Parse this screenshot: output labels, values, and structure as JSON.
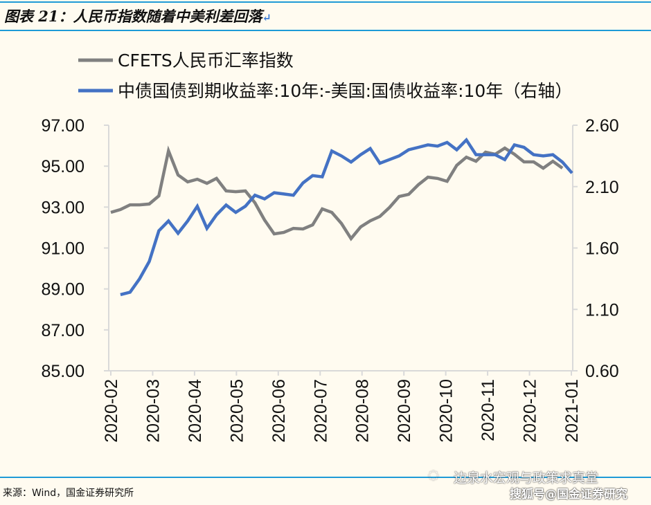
{
  "header": {
    "title": "图表 21：人民币指数随着中美利差回落",
    "return_mark": "↵"
  },
  "footer": {
    "source": "来源：Wind，国金证券研究所",
    "watermark_top": "边泉水宏观与政策求真堂",
    "watermark_bottom": "搜狐号@国金证券研究"
  },
  "chart_data": {
    "type": "line",
    "title": "",
    "x_tick_labels": [
      "2020-02",
      "2020-03",
      "2020-04",
      "2020-05",
      "2020-06",
      "2020-07",
      "2020-08",
      "2020-09",
      "2020-10",
      "2020-11",
      "2020-12",
      "2021-01"
    ],
    "x_range": [
      "2020-02",
      "2021-01"
    ],
    "left_axis": {
      "min": 85,
      "max": 97,
      "ticks": [
        "85.00",
        "87.00",
        "89.00",
        "91.00",
        "93.00",
        "95.00",
        "97.00"
      ]
    },
    "right_axis": {
      "min": 0.6,
      "max": 2.6,
      "ticks": [
        "0.60",
        "1.10",
        "1.60",
        "2.10",
        "2.60"
      ],
      "label": "右轴"
    },
    "grid": false,
    "legend_placement": "top-left",
    "series": [
      {
        "name": "CFETS人民币汇率指数",
        "axis": "left",
        "color": "#808080",
        "values": [
          92.74,
          92.88,
          93.11,
          93.11,
          93.15,
          93.55,
          95.75,
          94.57,
          94.23,
          94.36,
          94.16,
          94.4,
          93.79,
          93.75,
          93.79,
          93.21,
          92.37,
          91.69,
          91.76,
          91.96,
          91.93,
          92.13,
          92.91,
          92.74,
          92.2,
          91.46,
          92.03,
          92.33,
          92.54,
          92.98,
          93.52,
          93.62,
          94.09,
          94.46,
          94.4,
          94.26,
          95.04,
          95.44,
          95.24,
          95.68,
          95.58,
          95.88,
          95.58,
          95.21,
          95.21,
          94.9,
          95.24,
          94.9,
          null
        ]
      },
      {
        "name": "中债国债到期收益率:10年:-美国:国债收益率:10年（右轴）",
        "axis": "right",
        "color": "#4472c4",
        "values": [
          null,
          1.22,
          1.24,
          1.35,
          1.49,
          1.74,
          1.82,
          1.72,
          1.82,
          1.94,
          1.76,
          1.87,
          1.95,
          1.89,
          1.94,
          2.03,
          2.0,
          2.05,
          2.04,
          2.03,
          2.13,
          2.19,
          2.18,
          2.39,
          2.35,
          2.3,
          2.36,
          2.41,
          2.29,
          2.32,
          2.35,
          2.4,
          2.42,
          2.44,
          2.43,
          2.46,
          2.4,
          2.48,
          2.36,
          2.36,
          2.36,
          2.32,
          2.44,
          2.42,
          2.36,
          2.35,
          2.36,
          2.3,
          2.21
        ]
      }
    ]
  }
}
